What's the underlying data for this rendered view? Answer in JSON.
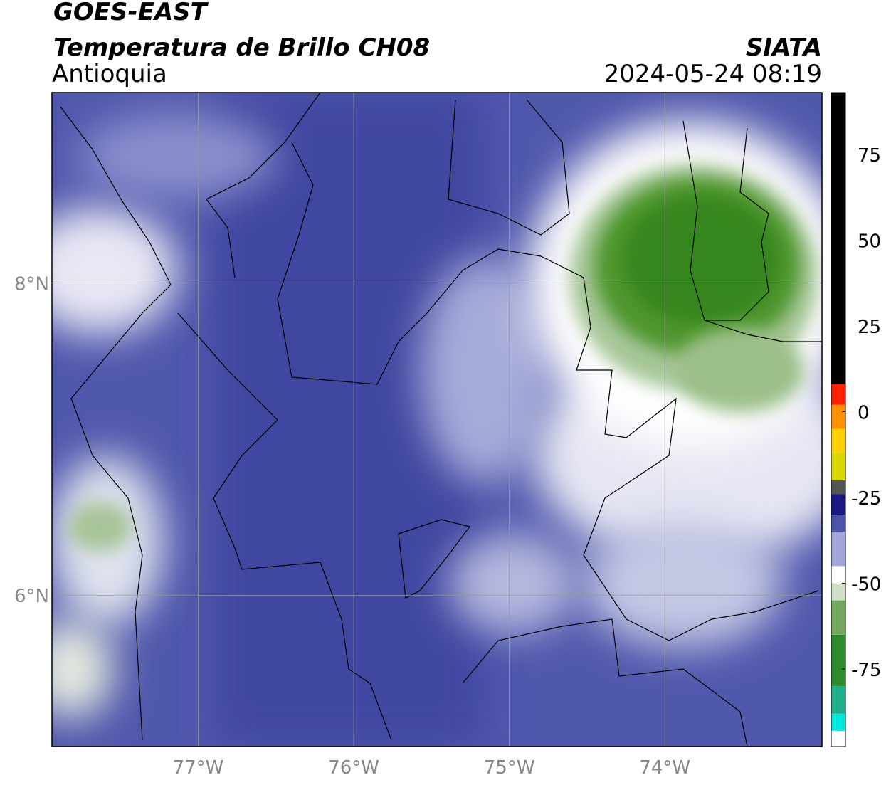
{
  "header": {
    "title": "GOES-EAST",
    "subtitle": "Temperatura de Brillo CH08",
    "region": "Antioquia",
    "source": "SIATA",
    "timestamp": "2024-05-24 08:19"
  },
  "map": {
    "xlim": [
      -77.94,
      -72.99
    ],
    "ylim": [
      5.03,
      9.22
    ],
    "xticks": [
      {
        "value": -77,
        "label": "77°W"
      },
      {
        "value": -76,
        "label": "76°W"
      },
      {
        "value": -75,
        "label": "75°W"
      },
      {
        "value": -74,
        "label": "74°W"
      }
    ],
    "yticks": [
      {
        "value": 8,
        "label": "8°N"
      },
      {
        "value": 6,
        "label": "6°N"
      }
    ],
    "grid": true
  },
  "colorbar": {
    "lim": [
      -97.6,
      93
    ],
    "ticks": [
      75,
      50,
      25,
      0,
      -25,
      -50,
      -75
    ],
    "bands": [
      {
        "from": -97.6,
        "to": -93,
        "color": "#ffffff"
      },
      {
        "from": -93,
        "to": -88,
        "color": "#00e8dc"
      },
      {
        "from": -88,
        "to": -80,
        "color": "#1fae8a"
      },
      {
        "from": -80,
        "to": -65,
        "color": "#2f8a2c"
      },
      {
        "from": -65,
        "to": -55,
        "color": "#74a85c"
      },
      {
        "from": -55,
        "to": -50,
        "color": "#cfe0c6"
      },
      {
        "from": -50,
        "to": -45,
        "color": "#ffffff"
      },
      {
        "from": -45,
        "to": -35,
        "color": "#a3a7d8"
      },
      {
        "from": -35,
        "to": -30,
        "color": "#4c54aa"
      },
      {
        "from": -30,
        "to": -24,
        "color": "#1a1a82"
      },
      {
        "from": -24,
        "to": -20,
        "color": "#555555"
      },
      {
        "from": -20,
        "to": -12,
        "color": "#d8d800"
      },
      {
        "from": -12,
        "to": -5,
        "color": "#ffd000"
      },
      {
        "from": -5,
        "to": 2,
        "color": "#ff9000"
      },
      {
        "from": 2,
        "to": 8,
        "color": "#ff2200"
      },
      {
        "from": 8,
        "to": 93,
        "color": "#000000"
      }
    ]
  }
}
